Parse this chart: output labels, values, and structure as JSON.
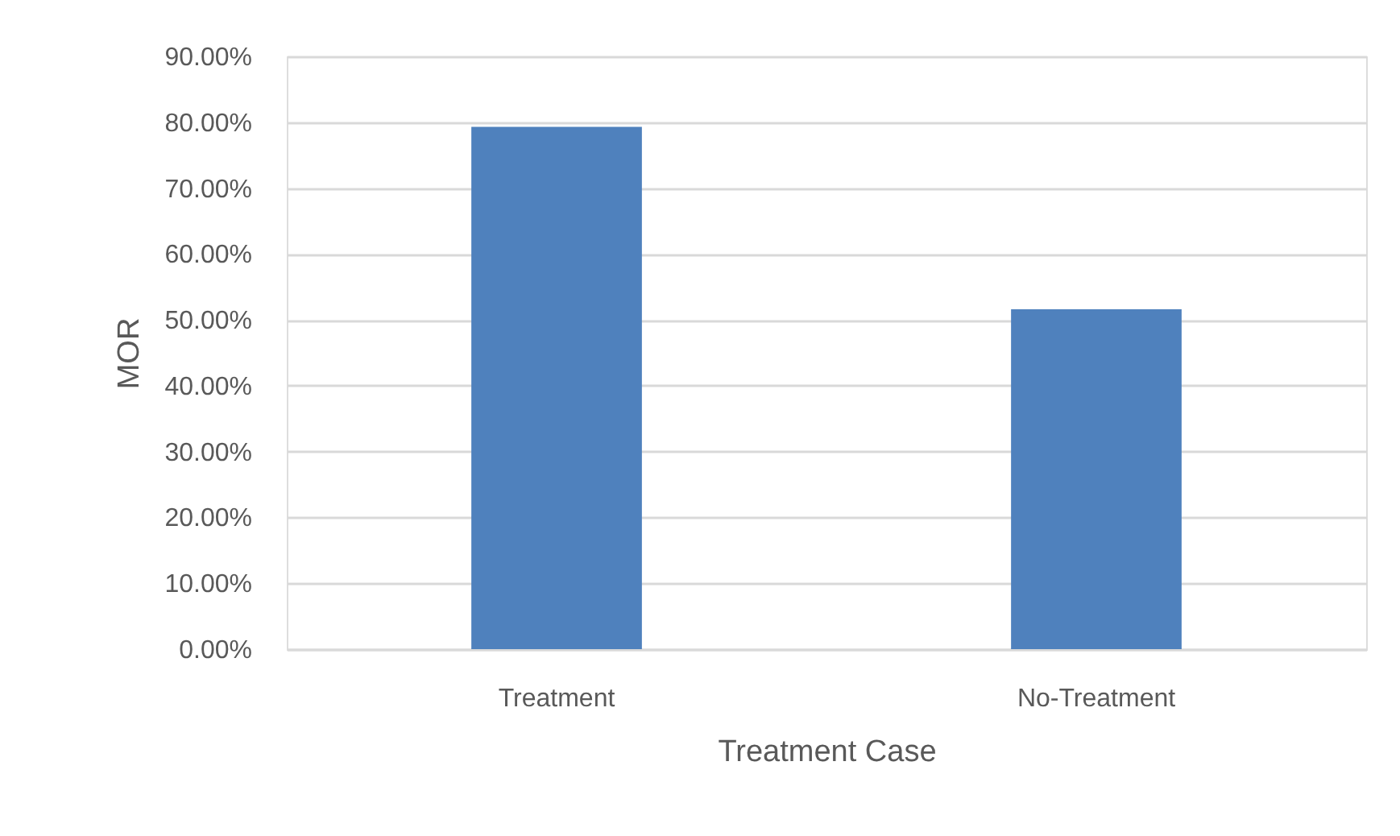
{
  "chart_data": {
    "type": "bar",
    "xlabel": "Treatment Case",
    "ylabel": "MOR",
    "categories": [
      "Treatment",
      "No-Treatment"
    ],
    "values": [
      79.3,
      51.6
    ],
    "color": "#4f81bd",
    "ylim": [
      0,
      90
    ],
    "yticks": [
      {
        "value": 0,
        "label": "0.00%"
      },
      {
        "value": 10,
        "label": "10.00%"
      },
      {
        "value": 20,
        "label": "20.00%"
      },
      {
        "value": 30,
        "label": "30.00%"
      },
      {
        "value": 40,
        "label": "40.00%"
      },
      {
        "value": 50,
        "label": "50.00%"
      },
      {
        "value": 60,
        "label": "60.00%"
      },
      {
        "value": 70,
        "label": "70.00%"
      },
      {
        "value": 80,
        "label": "80.00%"
      },
      {
        "value": 90,
        "label": "90.00%"
      }
    ],
    "grid": "y"
  }
}
